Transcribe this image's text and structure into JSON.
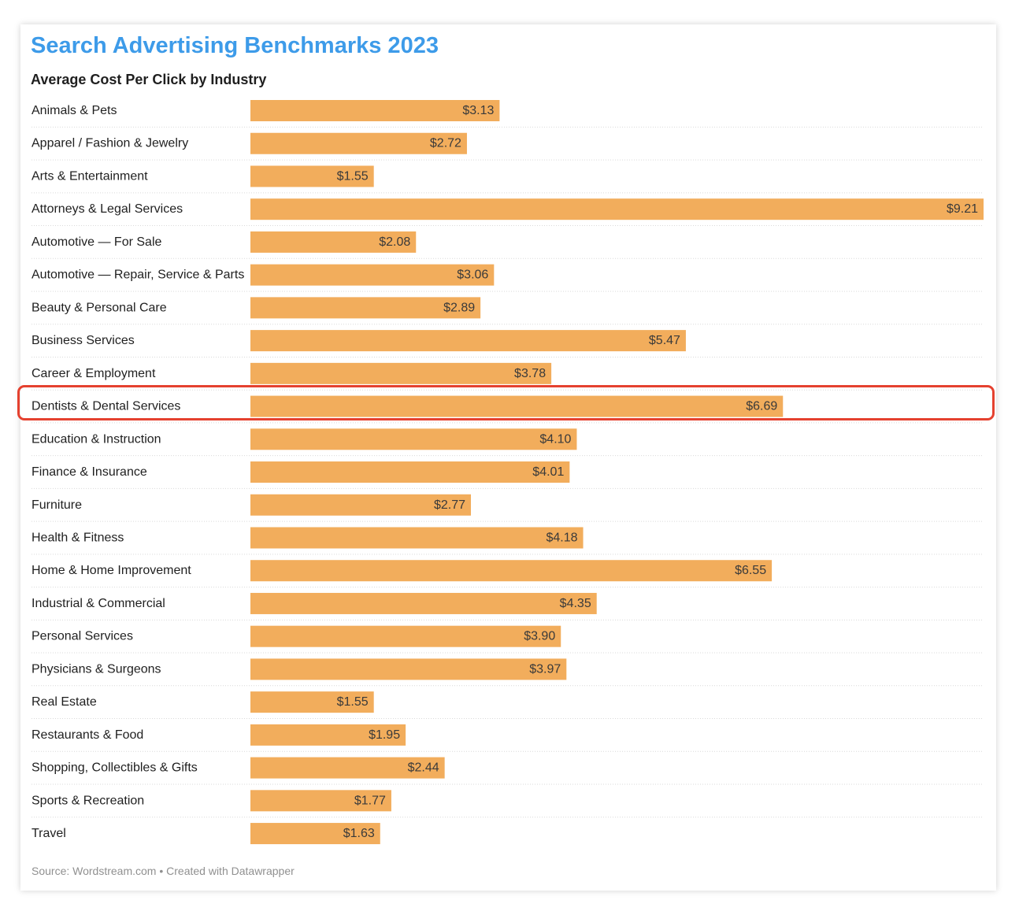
{
  "title": "Search Advertising Benchmarks 2023",
  "subtitle": "Average Cost Per Click by Industry",
  "source": "Source: Wordstream.com • Created with Datawrapper",
  "colors": {
    "title": "#3d9be9",
    "bar": "#f2ad5c",
    "highlight": "#e5412f",
    "grid": "#d9d9d9"
  },
  "chart_data": {
    "type": "bar",
    "orientation": "horizontal",
    "title": "Search Advertising Benchmarks 2023",
    "subtitle": "Average Cost Per Click by Industry",
    "xlabel": "",
    "ylabel": "",
    "xlim": [
      0,
      9.21
    ],
    "highlighted_category": "Dentists & Dental Services",
    "categories": [
      "Animals & Pets",
      "Apparel / Fashion & Jewelry",
      "Arts & Entertainment",
      "Attorneys & Legal Services",
      "Automotive — For Sale",
      "Automotive — Repair, Service & Parts",
      "Beauty & Personal Care",
      "Business Services",
      "Career & Employment",
      "Dentists & Dental Services",
      "Education & Instruction",
      "Finance & Insurance",
      "Furniture",
      "Health & Fitness",
      "Home & Home Improvement",
      "Industrial & Commercial",
      "Personal Services",
      "Physicians & Surgeons",
      "Real Estate",
      "Restaurants & Food",
      "Shopping, Collectibles & Gifts",
      "Sports & Recreation",
      "Travel"
    ],
    "values": [
      3.13,
      2.72,
      1.55,
      9.21,
      2.08,
      3.06,
      2.89,
      5.47,
      3.78,
      6.69,
      4.1,
      4.01,
      2.77,
      4.18,
      6.55,
      4.35,
      3.9,
      3.97,
      1.55,
      1.95,
      2.44,
      1.77,
      1.63
    ],
    "labels": [
      "$3.13",
      "$2.72",
      "$1.55",
      "$9.21",
      "$2.08",
      "$3.06",
      "$2.89",
      "$5.47",
      "$3.78",
      "$6.69",
      "$4.10",
      "$4.01",
      "$2.77",
      "$4.18",
      "$6.55",
      "$4.35",
      "$3.90",
      "$3.97",
      "$1.55",
      "$1.95",
      "$2.44",
      "$1.77",
      "$1.63"
    ]
  }
}
